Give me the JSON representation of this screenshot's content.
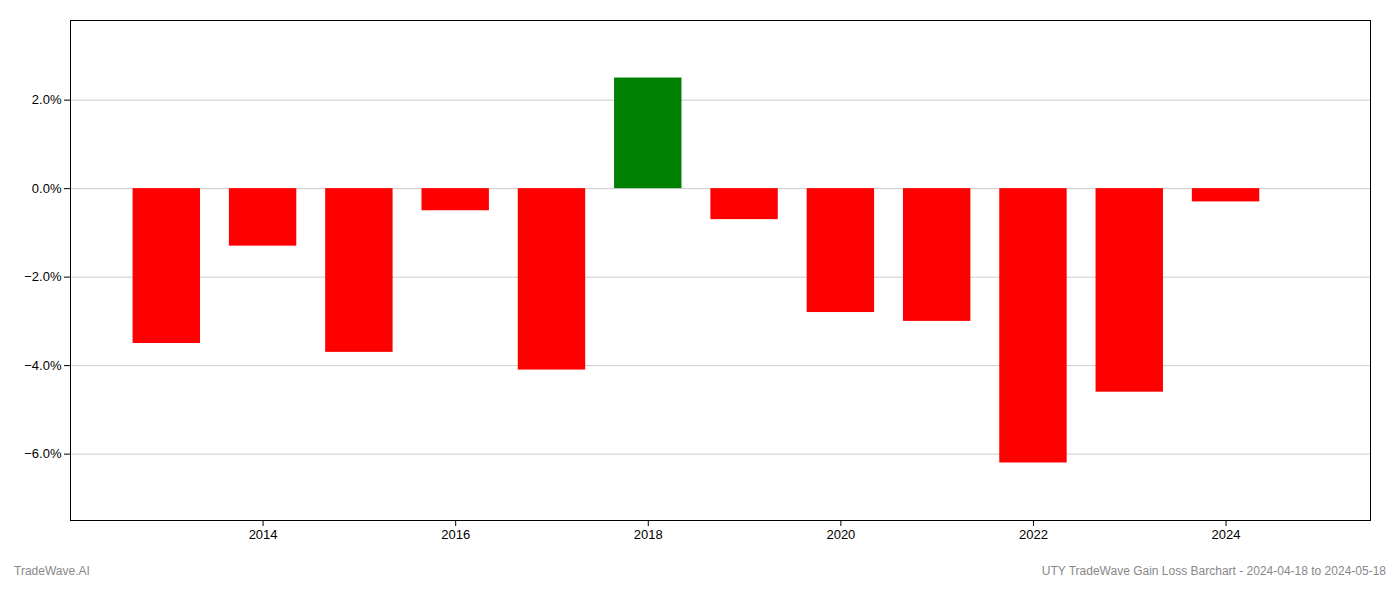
{
  "chart_data": {
    "type": "bar",
    "x": [
      2013,
      2014,
      2015,
      2016,
      2017,
      2018,
      2019,
      2020,
      2021,
      2022,
      2023,
      2024
    ],
    "values": [
      -0.035,
      -0.013,
      -0.037,
      -0.005,
      -0.041,
      0.025,
      -0.007,
      -0.028,
      -0.03,
      -0.062,
      -0.046,
      -0.003
    ],
    "colors": [
      "#ff0000",
      "#ff0000",
      "#ff0000",
      "#ff0000",
      "#ff0000",
      "#008000",
      "#ff0000",
      "#ff0000",
      "#ff0000",
      "#ff0000",
      "#ff0000",
      "#ff0000"
    ],
    "xlim": [
      2012.0,
      2025.5
    ],
    "xticks": [
      2014,
      2016,
      2018,
      2020,
      2022,
      2024
    ],
    "ylim": [
      -0.075,
      0.038
    ],
    "yticks": [
      {
        "value": -0.06,
        "label": "−6.0%"
      },
      {
        "value": -0.04,
        "label": "−4.0%"
      },
      {
        "value": -0.02,
        "label": "−2.0%"
      },
      {
        "value": 0.0,
        "label": "0.0%"
      },
      {
        "value": 0.02,
        "label": "2.0%"
      }
    ],
    "grid": true,
    "annotations": [
      "TradeWave.AI",
      "UTY TradeWave Gain Loss Barchart - 2024-04-18 to 2024-05-18"
    ]
  }
}
